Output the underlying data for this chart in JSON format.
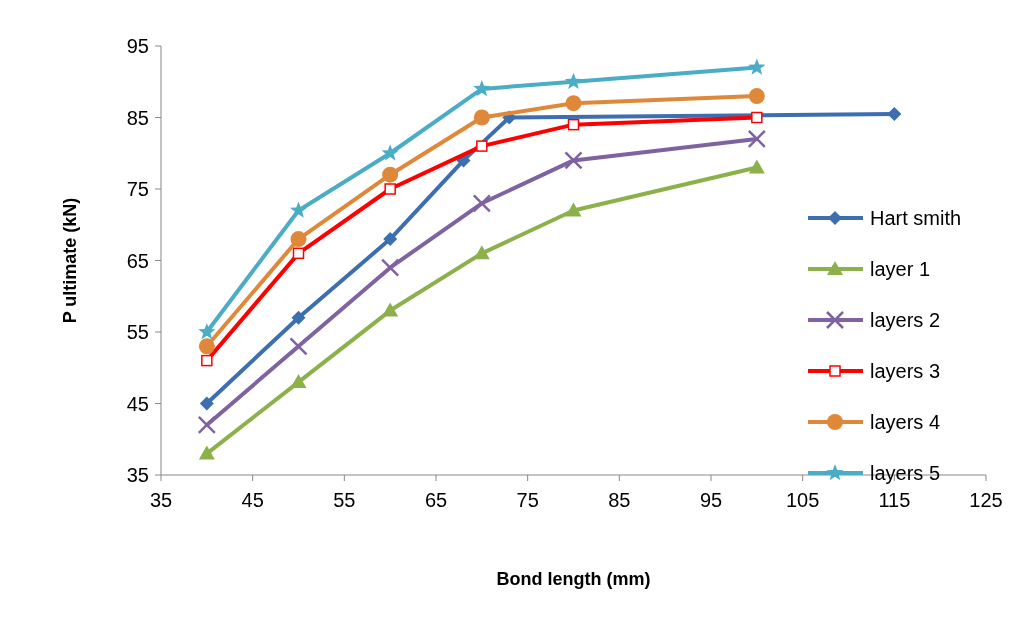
{
  "chart_data": {
    "type": "line",
    "xlabel": "Bond length (mm)",
    "ylabel": "P  ultimate (kN)",
    "xlim": [
      35,
      125
    ],
    "xticks": [
      35,
      45,
      55,
      65,
      75,
      85,
      95,
      105,
      115,
      125
    ],
    "ylim": [
      35,
      95
    ],
    "yticks": [
      35,
      45,
      55,
      65,
      75,
      85,
      95
    ],
    "legend": "right",
    "series": [
      {
        "name": "Hart smith",
        "color": "#3d6eb0",
        "marker": "diamond",
        "x": [
          40,
          50,
          60,
          68,
          73,
          115
        ],
        "values": [
          45,
          57,
          68,
          79,
          85,
          85.5
        ]
      },
      {
        "name": "layer 1",
        "color": "#8cb04a",
        "marker": "triangle",
        "x": [
          40,
          50,
          60,
          70,
          80,
          100
        ],
        "values": [
          38,
          48,
          58,
          66,
          72,
          78
        ]
      },
      {
        "name": "layers 2",
        "color": "#7f63a1",
        "marker": "cross",
        "x": [
          40,
          50,
          60,
          70,
          80,
          100
        ],
        "values": [
          42,
          53,
          64,
          73,
          79,
          82
        ]
      },
      {
        "name": "layers 3",
        "color": "#ff0000",
        "marker": "square",
        "x": [
          40,
          50,
          60,
          70,
          80,
          100
        ],
        "values": [
          51,
          66,
          75,
          81,
          84,
          85
        ]
      },
      {
        "name": "layers 4",
        "color": "#e0883a",
        "marker": "circle",
        "x": [
          40,
          50,
          60,
          70,
          80,
          100
        ],
        "values": [
          53,
          68,
          77,
          85,
          87,
          88
        ]
      },
      {
        "name": "layers 5",
        "color": "#4bacc6",
        "marker": "star",
        "x": [
          40,
          50,
          60,
          70,
          80,
          100
        ],
        "values": [
          55,
          72,
          80,
          89,
          90,
          92
        ]
      }
    ]
  }
}
